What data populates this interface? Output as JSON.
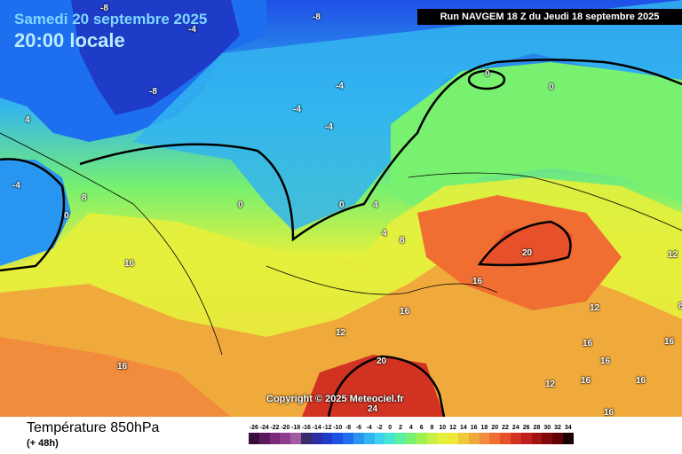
{
  "header": {
    "date": "Samedi 20 septembre 2025",
    "time": "20:00 locale",
    "run": "Run NAVGEM 18 Z du Jeudi 18 septembre 2025"
  },
  "copyright": "Copyright © 2025 Meteociel.fr",
  "footer": {
    "parameter": "Température 850hPa",
    "lead": "(+ 48h)"
  },
  "colorbar": {
    "labels": [
      "-26",
      "-24",
      "-22",
      "-20",
      "-18",
      "-16",
      "-14",
      "-12",
      "-10",
      "-8",
      "-6",
      "-4",
      "-2",
      "0",
      "2",
      "4",
      "6",
      "8",
      "10",
      "12",
      "14",
      "16",
      "18",
      "20",
      "22",
      "24",
      "26",
      "28",
      "30",
      "32",
      "34"
    ],
    "colors": [
      "#3a0e3a",
      "#5c1a5c",
      "#7a2a7a",
      "#8f3c8f",
      "#a25aa2",
      "#3c2a6e",
      "#2a2ea0",
      "#1e3cc8",
      "#1e50e6",
      "#1e6ef0",
      "#2896f0",
      "#32b4f0",
      "#3cd2f0",
      "#46e6d2",
      "#5af0a0",
      "#78f070",
      "#a0f050",
      "#c8f046",
      "#e6f03c",
      "#f0e63c",
      "#f0c83c",
      "#f0aa3c",
      "#f08c3c",
      "#f06e32",
      "#e6502a",
      "#d23222",
      "#be1e1e",
      "#a01414",
      "#800a0a",
      "#600000",
      "#1a0000"
    ]
  },
  "map_labels": [
    "-8",
    "-4",
    "-8",
    "-8",
    "-4",
    "-4",
    "-4",
    "0",
    "0",
    "4",
    "-4",
    "8",
    "0",
    "0",
    "0",
    "4",
    "4",
    "8",
    "16",
    "20",
    "16",
    "16",
    "12",
    "16",
    "20",
    "12",
    "16",
    "16",
    "12",
    "16",
    "16",
    "16",
    "24",
    "12",
    "16",
    "8"
  ],
  "colors": {
    "cold_deep": "#1e3cc8",
    "cold": "#32b4f0",
    "mild": "#78f070",
    "warm": "#f0e63c",
    "hot": "#f06e32",
    "very_hot": "#d23222"
  }
}
